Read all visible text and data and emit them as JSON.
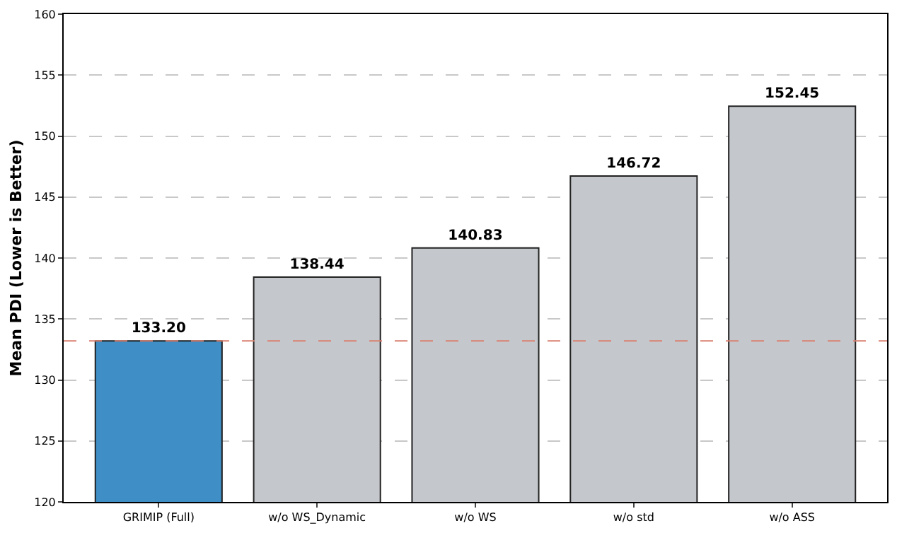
{
  "chart_data": {
    "type": "bar",
    "ylabel": "Mean PDI (Lower is Better)",
    "categories": [
      "GRIMIP (Full)",
      "w/o WS_Dynamic",
      "w/o WS",
      "w/o std",
      "w/o ASS"
    ],
    "values": [
      133.2,
      138.44,
      140.83,
      146.72,
      152.45
    ],
    "colors": [
      "#3f8fc6",
      "#c4c8cc",
      "#c4c8cc",
      "#c4c8cc",
      "#c4c8cc"
    ],
    "ylim": [
      120,
      160
    ],
    "yticks": [
      120,
      125,
      130,
      135,
      140,
      145,
      150,
      155,
      160
    ],
    "grid": "y",
    "value_labels": [
      "133.20",
      "138.44",
      "140.83",
      "146.72",
      "152.45"
    ],
    "ref_lines": [
      {
        "axis": "y",
        "value": 133.2,
        "color": "#d9806f",
        "line_style": "dashed"
      }
    ]
  }
}
